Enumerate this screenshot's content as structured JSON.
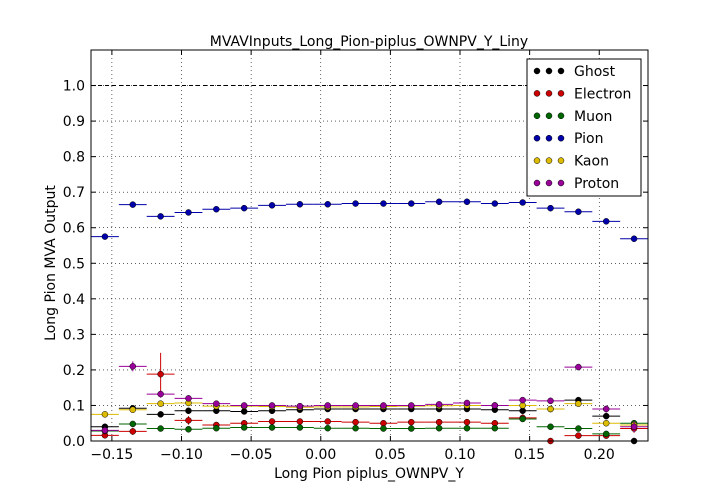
{
  "chart_data": {
    "type": "scatter",
    "title": "MVAVInputs_Long_Pion-piplus_OWNPV_Y_Liny",
    "xlabel": "Long Pion piplus_OWNPV_Y",
    "ylabel": "Long Pion MVA Output",
    "xlim": [
      -0.165,
      0.235
    ],
    "ylim": [
      0.0,
      1.1
    ],
    "xticks": [
      "−0.15",
      "−0.10",
      "−0.05",
      "0.00",
      "0.05",
      "0.10",
      "0.15",
      "0.20"
    ],
    "xtick_values": [
      -0.15,
      -0.1,
      -0.05,
      0.0,
      0.05,
      0.1,
      0.15,
      0.2
    ],
    "yticks": [
      "0.0",
      "0.1",
      "0.2",
      "0.3",
      "0.4",
      "0.5",
      "0.6",
      "0.7",
      "0.8",
      "0.9",
      "1.0"
    ],
    "ytick_values": [
      0.0,
      0.1,
      0.2,
      0.3,
      0.4,
      0.5,
      0.6,
      0.7,
      0.8,
      0.9,
      1.0
    ],
    "grid": true,
    "legend_position": "top-right",
    "reference_line": 1.0,
    "bin_half_width": 0.01,
    "series": [
      {
        "name": "Ghost",
        "color": "#000000",
        "x": [
          -0.155,
          -0.135,
          -0.115,
          -0.095,
          -0.075,
          -0.055,
          -0.035,
          -0.015,
          0.005,
          0.025,
          0.045,
          0.065,
          0.085,
          0.105,
          0.125,
          0.145,
          0.165,
          0.185,
          0.205,
          0.225
        ],
        "y": [
          0.04,
          0.092,
          0.075,
          0.085,
          0.085,
          0.083,
          0.085,
          0.088,
          0.09,
          0.09,
          0.09,
          0.09,
          0.09,
          0.09,
          0.088,
          0.085,
          0.09,
          0.115,
          0.07,
          0.0
        ]
      },
      {
        "name": "Electron",
        "color": "#cc0000",
        "x": [
          -0.155,
          -0.135,
          -0.115,
          -0.095,
          -0.075,
          -0.055,
          -0.035,
          -0.015,
          0.005,
          0.025,
          0.045,
          0.065,
          0.085,
          0.105,
          0.125,
          0.145,
          0.165,
          0.185,
          0.205,
          0.225
        ],
        "y": [
          0.016,
          0.027,
          0.188,
          0.058,
          0.045,
          0.05,
          0.055,
          0.055,
          0.055,
          0.053,
          0.05,
          0.053,
          0.053,
          0.053,
          0.05,
          0.065,
          0.0,
          0.015,
          0.015,
          0.035
        ],
        "yerr": [
          0.008,
          0.01,
          0.06,
          0.012,
          0.006,
          0.005,
          0.005,
          0.004,
          0.004,
          0.004,
          0.004,
          0.004,
          0.004,
          0.004,
          0.005,
          0.01,
          0.005,
          0.008,
          0.008,
          0.012
        ]
      },
      {
        "name": "Muon",
        "color": "#006600",
        "x": [
          -0.155,
          -0.135,
          -0.115,
          -0.095,
          -0.075,
          -0.055,
          -0.035,
          -0.015,
          0.005,
          0.025,
          0.045,
          0.065,
          0.085,
          0.105,
          0.125,
          0.145,
          0.165,
          0.185,
          0.205,
          0.225
        ],
        "y": [
          0.028,
          0.048,
          0.035,
          0.033,
          0.036,
          0.038,
          0.038,
          0.038,
          0.036,
          0.036,
          0.035,
          0.035,
          0.036,
          0.036,
          0.036,
          0.062,
          0.04,
          0.035,
          0.02,
          0.05
        ]
      },
      {
        "name": "Pion",
        "color": "#0000aa",
        "x": [
          -0.155,
          -0.135,
          -0.115,
          -0.095,
          -0.075,
          -0.055,
          -0.035,
          -0.015,
          0.005,
          0.025,
          0.045,
          0.065,
          0.085,
          0.105,
          0.125,
          0.145,
          0.165,
          0.185,
          0.205,
          0.225
        ],
        "y": [
          0.575,
          0.665,
          0.632,
          0.643,
          0.652,
          0.655,
          0.663,
          0.666,
          0.666,
          0.668,
          0.668,
          0.668,
          0.673,
          0.673,
          0.668,
          0.671,
          0.655,
          0.645,
          0.618,
          0.569
        ]
      },
      {
        "name": "Kaon",
        "color": "#ddbb00",
        "x": [
          -0.155,
          -0.135,
          -0.115,
          -0.095,
          -0.075,
          -0.055,
          -0.035,
          -0.015,
          0.005,
          0.025,
          0.045,
          0.065,
          0.085,
          0.105,
          0.125,
          0.145,
          0.165,
          0.185,
          0.205,
          0.225
        ],
        "y": [
          0.075,
          0.088,
          0.105,
          0.107,
          0.098,
          0.098,
          0.097,
          0.095,
          0.096,
          0.096,
          0.097,
          0.098,
          0.099,
          0.1,
          0.1,
          0.1,
          0.09,
          0.105,
          0.05,
          0.045
        ]
      },
      {
        "name": "Proton",
        "color": "#990099",
        "x": [
          -0.155,
          -0.135,
          -0.115,
          -0.095,
          -0.075,
          -0.055,
          -0.035,
          -0.015,
          0.005,
          0.025,
          0.045,
          0.065,
          0.085,
          0.105,
          0.125,
          0.145,
          0.165,
          0.185,
          0.205,
          0.225
        ],
        "y": [
          0.03,
          0.21,
          0.132,
          0.12,
          0.105,
          0.1,
          0.1,
          0.098,
          0.1,
          0.1,
          0.1,
          0.1,
          0.103,
          0.107,
          0.1,
          0.115,
          0.113,
          0.208,
          0.09,
          0.04
        ],
        "yerr": [
          0.01,
          0.014,
          0.01,
          0.005,
          0.004,
          0.003,
          0.003,
          0.003,
          0.003,
          0.003,
          0.003,
          0.003,
          0.003,
          0.003,
          0.004,
          0.005,
          0.006,
          0.008,
          0.01,
          0.015
        ]
      }
    ]
  }
}
